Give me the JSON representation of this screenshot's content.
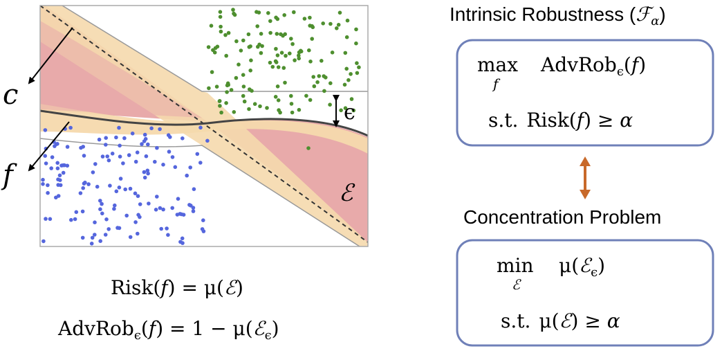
{
  "figure": {
    "label_c": "c",
    "label_f": "f",
    "label_eps": "ϵ",
    "label_E": "ℰ",
    "colors": {
      "region_pink": "#e8aaaa",
      "band_orange": "#f5d9ad",
      "green_points": "#4e8f2f",
      "blue_points": "#5566dd",
      "box_border": "#6f80b8",
      "arrow_brown": "#c8692a"
    }
  },
  "eq1": {
    "lhs": "Risk(",
    "f": "f",
    "mid": ") = μ(",
    "E": "ℰ",
    "rhs": ")"
  },
  "eq2": {
    "lhs": "AdvRob",
    "sub": "ϵ",
    "p1": "(",
    "f": "f",
    "mid": ") = 1 − μ(",
    "E": "ℰ",
    "sub2": "ϵ",
    "rhs": ")"
  },
  "right": {
    "title_text": "Intrinsic Robustness (",
    "title_F": "ℱ",
    "title_alpha": "α",
    "title_close": ")",
    "box1": {
      "max": "max",
      "max_sub": "f",
      "obj": "AdvRob",
      "obj_sub": "ϵ",
      "obj_open": "(",
      "obj_f": "f",
      "obj_close": ")",
      "st": "s.t.",
      "risk": "Risk(",
      "risk_f": "f",
      "risk_rest": ") ≥ ",
      "alpha": "α"
    },
    "concentration_title": "Concentration Problem",
    "box2": {
      "min": "min",
      "min_sub": "ℰ",
      "obj": "μ(",
      "obj_E": "ℰ",
      "obj_sub": "ϵ",
      "obj_close": ")",
      "st": "s.t.",
      "c_lhs": "μ(",
      "c_E": "ℰ",
      "c_rest": ") ≥ ",
      "alpha": "α"
    }
  }
}
